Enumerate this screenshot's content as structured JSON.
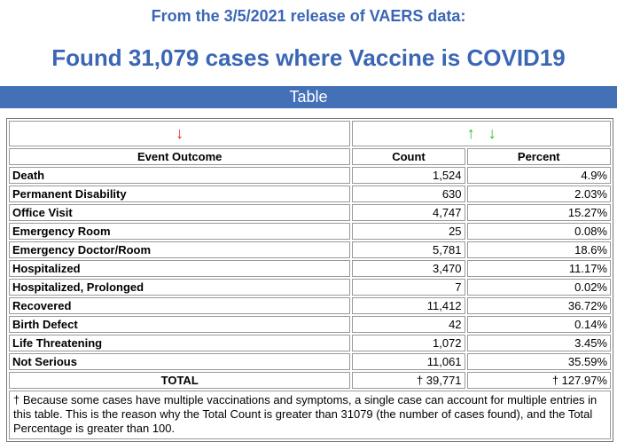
{
  "header": {
    "subtitle": "From the 3/5/2021 release of VAERS data:",
    "headline": "Found 31,079 cases where Vaccine is COVID19"
  },
  "table_bar": {
    "label": "Table"
  },
  "arrows": {
    "left": "↓",
    "up": "↑",
    "down": "↓"
  },
  "columns": {
    "event": "Event Outcome",
    "count": "Count",
    "percent": "Percent"
  },
  "rows": [
    {
      "label": "Death",
      "count": "1,524",
      "percent": "4.9%"
    },
    {
      "label": "Permanent Disability",
      "count": "630",
      "percent": "2.03%"
    },
    {
      "label": "Office Visit",
      "count": "4,747",
      "percent": "15.27%"
    },
    {
      "label": "Emergency Room",
      "count": "25",
      "percent": "0.08%"
    },
    {
      "label": "Emergency Doctor/Room",
      "count": "5,781",
      "percent": "18.6%"
    },
    {
      "label": "Hospitalized",
      "count": "3,470",
      "percent": "11.17%"
    },
    {
      "label": "Hospitalized, Prolonged",
      "count": "7",
      "percent": "0.02%"
    },
    {
      "label": "Recovered",
      "count": "11,412",
      "percent": "36.72%"
    },
    {
      "label": "Birth Defect",
      "count": "42",
      "percent": "0.14%"
    },
    {
      "label": "Life Threatening",
      "count": "1,072",
      "percent": "3.45%"
    },
    {
      "label": "Not Serious",
      "count": "11,061",
      "percent": "35.59%"
    }
  ],
  "total": {
    "label": "TOTAL",
    "count": "† 39,771",
    "percent": "† 127.97%"
  },
  "footnote": "† Because some cases have multiple vaccinations and symptoms, a single case can account for multiple entries in this table. This is the reason why the Total Count is greater than 31079 (the number of cases found), and the Total Percentage is greater than 100.",
  "colors": {
    "heading": "#3a66b5",
    "bar": "#4470b8",
    "arrow_red": "#e8231a",
    "arrow_green": "#18c21f"
  }
}
